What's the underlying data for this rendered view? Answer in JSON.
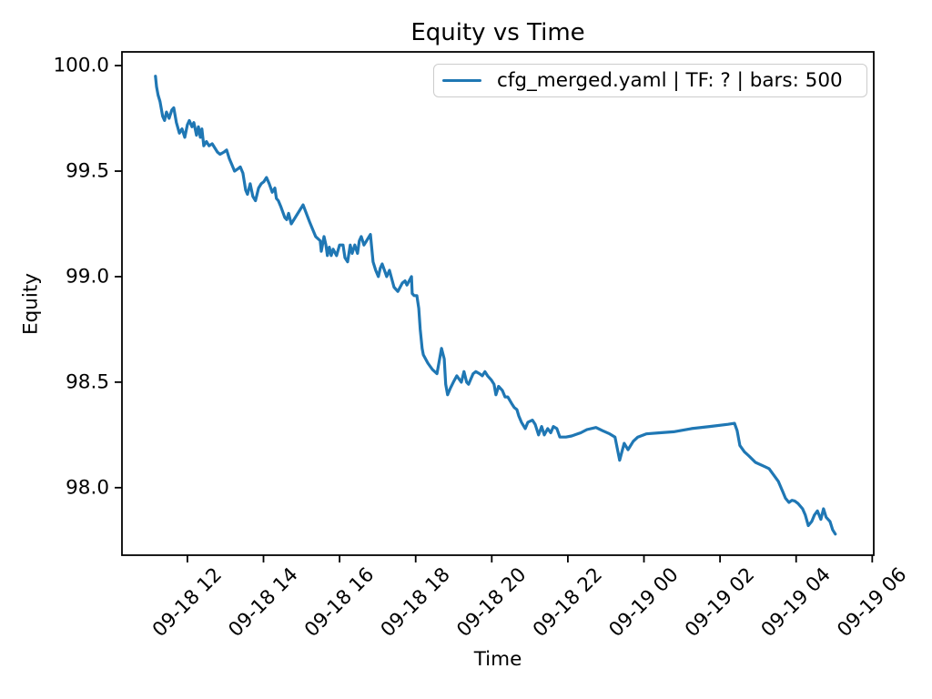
{
  "chart_data": {
    "type": "line",
    "title": "Equity vs Time",
    "xlabel": "Time",
    "ylabel": "Equity",
    "x_axis_note": "x values are hours since 09-18 00:00",
    "xlim": [
      10.28,
      30.04
    ],
    "ylim": [
      97.68,
      100.065
    ],
    "grid": false,
    "x_ticks": [
      {
        "value": 12,
        "label": "09-18 12"
      },
      {
        "value": 14,
        "label": "09-18 14"
      },
      {
        "value": 16,
        "label": "09-18 16"
      },
      {
        "value": 18,
        "label": "09-18 18"
      },
      {
        "value": 20,
        "label": "09-18 20"
      },
      {
        "value": 22,
        "label": "09-18 22"
      },
      {
        "value": 24,
        "label": "09-19 00"
      },
      {
        "value": 26,
        "label": "09-19 02"
      },
      {
        "value": 28,
        "label": "09-19 04"
      },
      {
        "value": 30,
        "label": "09-19 06"
      }
    ],
    "y_ticks": [
      {
        "value": 98.0,
        "label": "98.0"
      },
      {
        "value": 98.5,
        "label": "98.5"
      },
      {
        "value": 99.0,
        "label": "99.0"
      },
      {
        "value": 99.5,
        "label": "99.5"
      },
      {
        "value": 100.0,
        "label": "100.0"
      }
    ],
    "legend": {
      "position": "upper right",
      "entries": [
        {
          "label": "cfg_merged.yaml | TF: ? | bars: 500",
          "color": "#1f77b4"
        }
      ]
    },
    "series": [
      {
        "name": "cfg_merged.yaml | TF: ? | bars: 500",
        "color": "#1f77b4",
        "line_width": 3.2,
        "points": [
          [
            11.16,
            99.95
          ],
          [
            11.19,
            99.9
          ],
          [
            11.23,
            99.86
          ],
          [
            11.28,
            99.83
          ],
          [
            11.35,
            99.76
          ],
          [
            11.4,
            99.74
          ],
          [
            11.45,
            99.78
          ],
          [
            11.52,
            99.75
          ],
          [
            11.59,
            99.79
          ],
          [
            11.64,
            99.8
          ],
          [
            11.71,
            99.73
          ],
          [
            11.79,
            99.68
          ],
          [
            11.86,
            99.7
          ],
          [
            11.93,
            99.66
          ],
          [
            12.0,
            99.72
          ],
          [
            12.05,
            99.74
          ],
          [
            12.12,
            99.71
          ],
          [
            12.17,
            99.73
          ],
          [
            12.24,
            99.67
          ],
          [
            12.29,
            99.71
          ],
          [
            12.34,
            99.66
          ],
          [
            12.38,
            99.7
          ],
          [
            12.43,
            99.62
          ],
          [
            12.5,
            99.64
          ],
          [
            12.57,
            99.62
          ],
          [
            12.65,
            99.63
          ],
          [
            12.72,
            99.61
          ],
          [
            12.79,
            99.59
          ],
          [
            12.86,
            99.58
          ],
          [
            12.96,
            99.59
          ],
          [
            13.03,
            99.6
          ],
          [
            13.1,
            99.56
          ],
          [
            13.17,
            99.53
          ],
          [
            13.24,
            99.5
          ],
          [
            13.32,
            99.51
          ],
          [
            13.39,
            99.52
          ],
          [
            13.46,
            99.49
          ],
          [
            13.53,
            99.41
          ],
          [
            13.58,
            99.39
          ],
          [
            13.65,
            99.44
          ],
          [
            13.72,
            99.38
          ],
          [
            13.79,
            99.36
          ],
          [
            13.87,
            99.42
          ],
          [
            13.94,
            99.44
          ],
          [
            14.01,
            99.45
          ],
          [
            14.08,
            99.47
          ],
          [
            14.15,
            99.44
          ],
          [
            14.23,
            99.4
          ],
          [
            14.3,
            99.42
          ],
          [
            14.34,
            99.37
          ],
          [
            14.39,
            99.36
          ],
          [
            14.46,
            99.33
          ],
          [
            14.56,
            99.28
          ],
          [
            14.61,
            99.27
          ],
          [
            14.66,
            99.3
          ],
          [
            14.73,
            99.25
          ],
          [
            15.04,
            99.34
          ],
          [
            15.21,
            99.26
          ],
          [
            15.37,
            99.19
          ],
          [
            15.49,
            99.17
          ],
          [
            15.52,
            99.12
          ],
          [
            15.59,
            99.19
          ],
          [
            15.64,
            99.15
          ],
          [
            15.68,
            99.1
          ],
          [
            15.73,
            99.14
          ],
          [
            15.78,
            99.1
          ],
          [
            15.83,
            99.13
          ],
          [
            15.92,
            99.1
          ],
          [
            16.0,
            99.15
          ],
          [
            16.09,
            99.15
          ],
          [
            16.14,
            99.09
          ],
          [
            16.21,
            99.07
          ],
          [
            16.28,
            99.15
          ],
          [
            16.33,
            99.11
          ],
          [
            16.4,
            99.15
          ],
          [
            16.47,
            99.11
          ],
          [
            16.52,
            99.17
          ],
          [
            16.57,
            99.19
          ],
          [
            16.64,
            99.15
          ],
          [
            16.71,
            99.17
          ],
          [
            16.81,
            99.2
          ],
          [
            16.88,
            99.07
          ],
          [
            16.95,
            99.03
          ],
          [
            17.02,
            99.0
          ],
          [
            17.07,
            99.04
          ],
          [
            17.12,
            99.06
          ],
          [
            17.24,
            99.0
          ],
          [
            17.31,
            99.03
          ],
          [
            17.43,
            98.95
          ],
          [
            17.53,
            98.93
          ],
          [
            17.65,
            98.97
          ],
          [
            17.72,
            98.98
          ],
          [
            17.77,
            98.96
          ],
          [
            17.89,
            99.0
          ],
          [
            17.91,
            98.92
          ],
          [
            17.96,
            98.91
          ],
          [
            18.03,
            98.91
          ],
          [
            18.08,
            98.85
          ],
          [
            18.12,
            98.75
          ],
          [
            18.17,
            98.66
          ],
          [
            18.2,
            98.63
          ],
          [
            18.32,
            98.59
          ],
          [
            18.44,
            98.56
          ],
          [
            18.56,
            98.54
          ],
          [
            18.68,
            98.66
          ],
          [
            18.75,
            98.61
          ],
          [
            18.79,
            98.49
          ],
          [
            18.84,
            98.44
          ],
          [
            18.91,
            98.47
          ],
          [
            18.99,
            98.5
          ],
          [
            19.08,
            98.53
          ],
          [
            19.2,
            98.5
          ],
          [
            19.27,
            98.55
          ],
          [
            19.34,
            98.5
          ],
          [
            19.39,
            98.49
          ],
          [
            19.51,
            98.54
          ],
          [
            19.58,
            98.55
          ],
          [
            19.68,
            98.54
          ],
          [
            19.75,
            98.53
          ],
          [
            19.82,
            98.55
          ],
          [
            19.89,
            98.53
          ],
          [
            19.99,
            98.51
          ],
          [
            20.06,
            98.49
          ],
          [
            20.11,
            98.44
          ],
          [
            20.18,
            98.48
          ],
          [
            20.28,
            98.46
          ],
          [
            20.35,
            98.43
          ],
          [
            20.42,
            98.43
          ],
          [
            20.52,
            98.4
          ],
          [
            20.59,
            98.38
          ],
          [
            20.66,
            98.37
          ],
          [
            20.71,
            98.34
          ],
          [
            20.78,
            98.31
          ],
          [
            20.88,
            98.28
          ],
          [
            20.95,
            98.31
          ],
          [
            21.07,
            98.32
          ],
          [
            21.14,
            98.3
          ],
          [
            21.23,
            98.25
          ],
          [
            21.31,
            98.29
          ],
          [
            21.38,
            98.25
          ],
          [
            21.47,
            98.28
          ],
          [
            21.55,
            98.26
          ],
          [
            21.62,
            98.29
          ],
          [
            21.71,
            98.28
          ],
          [
            21.79,
            98.24
          ],
          [
            21.95,
            98.24
          ],
          [
            22.1,
            98.245
          ],
          [
            22.34,
            98.26
          ],
          [
            22.5,
            98.275
          ],
          [
            22.74,
            98.285
          ],
          [
            22.91,
            98.27
          ],
          [
            23.1,
            98.255
          ],
          [
            23.24,
            98.24
          ],
          [
            23.36,
            98.13
          ],
          [
            23.48,
            98.21
          ],
          [
            23.58,
            98.18
          ],
          [
            23.72,
            98.22
          ],
          [
            23.84,
            98.24
          ],
          [
            24.06,
            98.255
          ],
          [
            24.42,
            98.26
          ],
          [
            24.78,
            98.265
          ],
          [
            25.25,
            98.28
          ],
          [
            25.73,
            98.29
          ],
          [
            26.21,
            98.3
          ],
          [
            26.38,
            98.305
          ],
          [
            26.45,
            98.27
          ],
          [
            26.52,
            98.2
          ],
          [
            26.64,
            98.17
          ],
          [
            26.76,
            98.15
          ],
          [
            26.93,
            98.12
          ],
          [
            27.17,
            98.1
          ],
          [
            27.29,
            98.09
          ],
          [
            27.41,
            98.06
          ],
          [
            27.53,
            98.03
          ],
          [
            27.65,
            97.98
          ],
          [
            27.72,
            97.95
          ],
          [
            27.81,
            97.93
          ],
          [
            27.89,
            97.94
          ],
          [
            27.96,
            97.937
          ],
          [
            28.05,
            97.925
          ],
          [
            28.17,
            97.9
          ],
          [
            28.24,
            97.87
          ],
          [
            28.32,
            97.82
          ],
          [
            28.41,
            97.84
          ],
          [
            28.48,
            97.87
          ],
          [
            28.56,
            97.89
          ],
          [
            28.65,
            97.85
          ],
          [
            28.72,
            97.9
          ],
          [
            28.79,
            97.86
          ],
          [
            28.89,
            97.84
          ],
          [
            28.96,
            97.8
          ],
          [
            29.03,
            97.78
          ]
        ]
      }
    ]
  },
  "colors": {
    "line": "#1f77b4",
    "text": "#000000",
    "spine": "#000000",
    "legend_border": "#cccccc",
    "background": "#ffffff"
  }
}
